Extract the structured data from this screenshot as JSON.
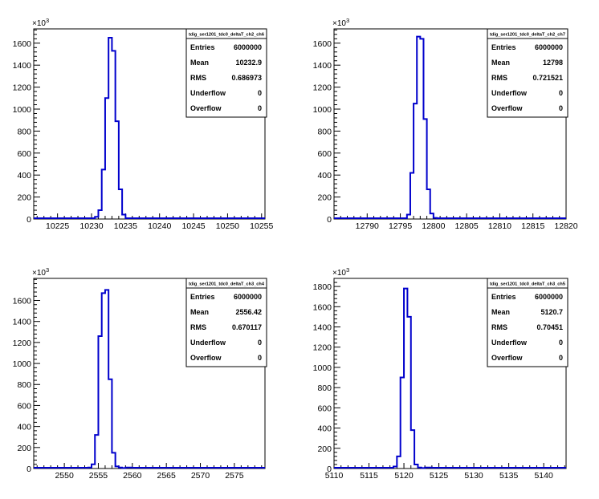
{
  "chart_data": [
    {
      "type": "histogram",
      "title": "tdig_ser1201_tdc0_deltaT_ch2_ch6",
      "y_multiplier_label": "10",
      "y_multiplier_exp": "3",
      "xlim": [
        10221.5,
        10255.5
      ],
      "ylim": [
        0,
        1730
      ],
      "xticks": [
        10225,
        10230,
        10235,
        10240,
        10245,
        10250,
        10255
      ],
      "xtick_labels": [
        "10225",
        "10230",
        "10235",
        "10240",
        "10245",
        "10250",
        "10255"
      ],
      "yticks": [
        0,
        200,
        400,
        600,
        800,
        1000,
        1200,
        1400,
        1600
      ],
      "ytick_labels": [
        "0",
        "200",
        "400",
        "600",
        "800",
        "1000",
        "1200",
        "1400",
        "1600"
      ],
      "bins": [
        {
          "x0": 10230.5,
          "x1": 10231.0,
          "y": 20
        },
        {
          "x0": 10231.0,
          "x1": 10231.5,
          "y": 80
        },
        {
          "x0": 10231.5,
          "x1": 10232.0,
          "y": 450
        },
        {
          "x0": 10232.0,
          "x1": 10232.5,
          "y": 1100
        },
        {
          "x0": 10232.5,
          "x1": 10233.0,
          "y": 1650
        },
        {
          "x0": 10233.0,
          "x1": 10233.5,
          "y": 1530
        },
        {
          "x0": 10233.5,
          "x1": 10234.0,
          "y": 890
        },
        {
          "x0": 10234.0,
          "x1": 10234.5,
          "y": 270
        },
        {
          "x0": 10234.5,
          "x1": 10235.0,
          "y": 40
        }
      ],
      "stats": [
        {
          "label": "Entries",
          "value": "6000000"
        },
        {
          "label": "Mean",
          "value": "10232.9"
        },
        {
          "label": "RMS",
          "value": "0.686973"
        },
        {
          "label": "Underflow",
          "value": "0"
        },
        {
          "label": "Overflow",
          "value": "0"
        }
      ],
      "line_color": "#0000cc"
    },
    {
      "type": "histogram",
      "title": "tdig_ser1201_tdc0_deltaT_ch2_ch7",
      "y_multiplier_label": "10",
      "y_multiplier_exp": "3",
      "xlim": [
        12785.0,
        12820.0
      ],
      "ylim": [
        0,
        1730
      ],
      "xticks": [
        12790,
        12795,
        12800,
        12805,
        12810,
        12815,
        12820
      ],
      "xtick_labels": [
        "12790",
        "12795",
        "12800",
        "12805",
        "12810",
        "12815",
        "12820"
      ],
      "yticks": [
        0,
        200,
        400,
        600,
        800,
        1000,
        1200,
        1400,
        1600
      ],
      "ytick_labels": [
        "0",
        "200",
        "400",
        "600",
        "800",
        "1000",
        "1200",
        "1400",
        "1600"
      ],
      "bins": [
        {
          "x0": 12796.0,
          "x1": 12796.5,
          "y": 40
        },
        {
          "x0": 12796.5,
          "x1": 12797.0,
          "y": 420
        },
        {
          "x0": 12797.0,
          "x1": 12797.5,
          "y": 1050
        },
        {
          "x0": 12797.5,
          "x1": 12798.0,
          "y": 1660
        },
        {
          "x0": 12798.0,
          "x1": 12798.5,
          "y": 1640
        },
        {
          "x0": 12798.5,
          "x1": 12799.0,
          "y": 910
        },
        {
          "x0": 12799.0,
          "x1": 12799.5,
          "y": 270
        },
        {
          "x0": 12799.5,
          "x1": 12800.0,
          "y": 50
        },
        {
          "x0": 12800.0,
          "x1": 12800.5,
          "y": 10
        }
      ],
      "stats": [
        {
          "label": "Entries",
          "value": "6000000"
        },
        {
          "label": "Mean",
          "value": "12798"
        },
        {
          "label": "RMS",
          "value": "0.721521"
        },
        {
          "label": "Underflow",
          "value": "0"
        },
        {
          "label": "Overflow",
          "value": "0"
        }
      ],
      "line_color": "#0000cc"
    },
    {
      "type": "histogram",
      "title": "tdig_ser1201_tdc0_deltaT_ch3_ch4",
      "y_multiplier_label": "10",
      "y_multiplier_exp": "3",
      "xlim": [
        2545.5,
        2579.5
      ],
      "ylim": [
        0,
        1810
      ],
      "xticks": [
        2550,
        2555,
        2560,
        2565,
        2570,
        2575
      ],
      "xtick_labels": [
        "2550",
        "2555",
        "2560",
        "2565",
        "2570",
        "2575"
      ],
      "yticks": [
        0,
        200,
        400,
        600,
        800,
        1000,
        1200,
        1400,
        1600
      ],
      "ytick_labels": [
        "0",
        "200",
        "400",
        "600",
        "800",
        "1000",
        "1200",
        "1400",
        "1600"
      ],
      "bins": [
        {
          "x0": 2553.5,
          "x1": 2554.0,
          "y": 10
        },
        {
          "x0": 2554.0,
          "x1": 2554.5,
          "y": 40
        },
        {
          "x0": 2554.5,
          "x1": 2555.0,
          "y": 320
        },
        {
          "x0": 2555.0,
          "x1": 2555.5,
          "y": 1260
        },
        {
          "x0": 2555.5,
          "x1": 2556.0,
          "y": 1670
        },
        {
          "x0": 2556.0,
          "x1": 2556.5,
          "y": 1700
        },
        {
          "x0": 2556.5,
          "x1": 2557.0,
          "y": 850
        },
        {
          "x0": 2557.0,
          "x1": 2557.5,
          "y": 150
        },
        {
          "x0": 2557.5,
          "x1": 2558.0,
          "y": 20
        },
        {
          "x0": 2558.0,
          "x1": 2558.5,
          "y": 10
        },
        {
          "x0": 2558.5,
          "x1": 2559.0,
          "y": 5
        },
        {
          "x0": 2559.0,
          "x1": 2559.5,
          "y": 10
        },
        {
          "x0": 2559.5,
          "x1": 2560.0,
          "y": 10
        }
      ],
      "stats": [
        {
          "label": "Entries",
          "value": "6000000"
        },
        {
          "label": "Mean",
          "value": "2556.42"
        },
        {
          "label": "RMS",
          "value": "0.670117"
        },
        {
          "label": "Underflow",
          "value": "0"
        },
        {
          "label": "Overflow",
          "value": "0"
        }
      ],
      "line_color": "#0000cc"
    },
    {
      "type": "histogram",
      "title": "tdig_ser1201_tdc0_deltaT_ch3_ch5",
      "y_multiplier_label": "10",
      "y_multiplier_exp": "3",
      "xlim": [
        5110.0,
        5143.2
      ],
      "ylim": [
        0,
        1880
      ],
      "xticks": [
        5110,
        5115,
        5120,
        5125,
        5130,
        5135,
        5140
      ],
      "xtick_labels": [
        "5110",
        "5115",
        "5120",
        "5125",
        "5130",
        "5135",
        "5140"
      ],
      "yticks": [
        0,
        200,
        400,
        600,
        800,
        1000,
        1200,
        1400,
        1600,
        1800
      ],
      "ytick_labels": [
        "0",
        "200",
        "400",
        "600",
        "800",
        "1000",
        "1200",
        "1400",
        "1600",
        "1800"
      ],
      "bins": [
        {
          "x0": 5118.5,
          "x1": 5119.0,
          "y": 20
        },
        {
          "x0": 5119.0,
          "x1": 5119.5,
          "y": 120
        },
        {
          "x0": 5119.5,
          "x1": 5120.0,
          "y": 900
        },
        {
          "x0": 5120.0,
          "x1": 5120.5,
          "y": 1780
        },
        {
          "x0": 5120.5,
          "x1": 5121.0,
          "y": 1500
        },
        {
          "x0": 5121.0,
          "x1": 5121.5,
          "y": 380
        },
        {
          "x0": 5121.5,
          "x1": 5122.0,
          "y": 40
        },
        {
          "x0": 5122.0,
          "x1": 5122.5,
          "y": 10
        },
        {
          "x0": 5122.5,
          "x1": 5123.0,
          "y": 5
        },
        {
          "x0": 5123.0,
          "x1": 5123.5,
          "y": 10
        },
        {
          "x0": 5123.5,
          "x1": 5124.0,
          "y": 10
        }
      ],
      "stats": [
        {
          "label": "Entries",
          "value": "6000000"
        },
        {
          "label": "Mean",
          "value": "5120.7"
        },
        {
          "label": "RMS",
          "value": "0.70451"
        },
        {
          "label": "Underflow",
          "value": "0"
        },
        {
          "label": "Overflow",
          "value": "0"
        }
      ],
      "line_color": "#0000cc"
    }
  ]
}
